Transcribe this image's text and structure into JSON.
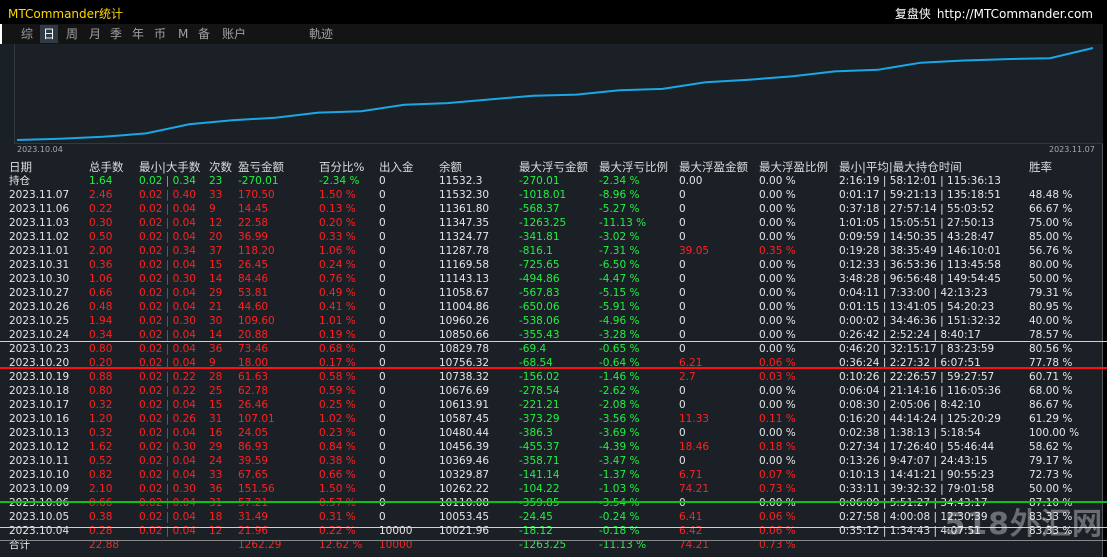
{
  "window": {
    "title": "MTCommander统计",
    "brand_name": "复盘侠",
    "brand_url": "http://MTCommander.com"
  },
  "tabs": [
    {
      "label": "综",
      "active": false
    },
    {
      "label": "日",
      "active": true
    },
    {
      "label": "周",
      "active": false
    },
    {
      "label": "月",
      "active": false
    },
    {
      "label": "季",
      "active": false
    },
    {
      "label": "年",
      "active": false
    },
    {
      "label": "币",
      "active": false
    },
    {
      "label": "M",
      "active": false
    },
    {
      "label": "备",
      "active": false
    },
    {
      "label": "账户",
      "active": false
    },
    {
      "label": "軌迹",
      "active": false
    }
  ],
  "chart_data": {
    "type": "line",
    "x_start_label": "2023.10.04",
    "x_end_label": "2023.11.07",
    "line_color": "#19a8e6",
    "values": [
      10000,
      10021.96,
      10053.45,
      10110.08,
      10262.22,
      10329.87,
      10369.46,
      10456.39,
      10480.44,
      10587.45,
      10613.91,
      10676.69,
      10738.32,
      10756.32,
      10829.78,
      10850.66,
      10960.26,
      11004.86,
      11058.67,
      11143.13,
      11169.58,
      11287.78,
      11324.77,
      11347.35,
      11361.8,
      11532.3
    ]
  },
  "table": {
    "headers": [
      "日期",
      "总手数",
      "最小|大手数",
      "次数",
      "盈亏金额",
      "百分比%",
      "出入金",
      "余额",
      "最大浮亏金额",
      "最大浮亏比例",
      "最大浮盈金额",
      "最大浮盈比例",
      "最小|平均|最大持仓时间",
      "胜率"
    ],
    "rows": [
      {
        "tone": "green",
        "cells": [
          "持仓",
          "1.64",
          "0.02 | 0.34",
          "23",
          "-270.01",
          "-2.34 %",
          "0",
          "11532.3",
          "-270.01",
          "-2.34 %",
          "0.00",
          "0.00 %",
          "2:16:19 | 58:12:01 | 115:36:13",
          ""
        ]
      },
      {
        "tone": "red",
        "cells": [
          "2023.11.07",
          "2.46",
          "0.02 | 0.40",
          "33",
          "170.50",
          "1.50 %",
          "0",
          "11532.30",
          "-1018.01",
          "-8.96 %",
          "0",
          "0.00 %",
          "0:01:17 | 59:21:13 | 135:18:51",
          "48.48 %"
        ]
      },
      {
        "tone": "red",
        "cells": [
          "2023.11.06",
          "0.22",
          "0.02 | 0.04",
          "9",
          "14.45",
          "0.13 %",
          "0",
          "11361.80",
          "-568.37",
          "-5.27 %",
          "0",
          "0.00 %",
          "0:37:18 | 27:57:14 | 55:03:52",
          "66.67 %"
        ]
      },
      {
        "tone": "red",
        "cells": [
          "2023.11.03",
          "0.30",
          "0.02 | 0.04",
          "12",
          "22.58",
          "0.20 %",
          "0",
          "11347.35",
          "-1263.25",
          "-11.13 %",
          "0",
          "0.00 %",
          "1:01:05 | 15:05:51 | 27:50:13",
          "75.00 %"
        ]
      },
      {
        "tone": "red",
        "cells": [
          "2023.11.02",
          "0.50",
          "0.02 | 0.04",
          "20",
          "36.99",
          "0.33 %",
          "0",
          "11324.77",
          "-341.81",
          "-3.02 %",
          "0",
          "0.00 %",
          "0:09:59 | 14:50:35 | 43:28:47",
          "85.00 %"
        ]
      },
      {
        "tone": "red",
        "cells": [
          "2023.11.01",
          "2.00",
          "0.02 | 0.34",
          "37",
          "118.20",
          "1.06 %",
          "0",
          "11287.78",
          "-816.1",
          "-7.31 %",
          "39.05",
          "0.35 %",
          "0:19:28 | 38:35:49 | 146:10:01",
          "56.76 %"
        ]
      },
      {
        "tone": "red",
        "cells": [
          "2023.10.31",
          "0.36",
          "0.02 | 0.04",
          "15",
          "26.45",
          "0.24 %",
          "0",
          "11169.58",
          "-725.65",
          "-6.50 %",
          "0",
          "0.00 %",
          "0:12:33 | 36:53:36 | 113:45:58",
          "80.00 %"
        ]
      },
      {
        "tone": "red",
        "cells": [
          "2023.10.30",
          "1.06",
          "0.02 | 0.30",
          "14",
          "84.46",
          "0.76 %",
          "0",
          "11143.13",
          "-494.86",
          "-4.47 %",
          "0",
          "0.00 %",
          "3:48:28 | 96:56:48 | 149:54:45",
          "50.00 %"
        ]
      },
      {
        "tone": "red",
        "cells": [
          "2023.10.27",
          "0.66",
          "0.02 | 0.04",
          "29",
          "53.81",
          "0.49 %",
          "0",
          "11058.67",
          "-567.83",
          "-5.15 %",
          "0",
          "0.00 %",
          "0:04:11 | 7:33:00 | 42:13:23",
          "79.31 %"
        ]
      },
      {
        "tone": "red",
        "cells": [
          "2023.10.26",
          "0.48",
          "0.02 | 0.04",
          "21",
          "44.60",
          "0.41 %",
          "0",
          "11004.86",
          "-650.06",
          "-5.91 %",
          "0",
          "0.00 %",
          "0:01:15 | 13:41:05 | 54:20:23",
          "80.95 %"
        ]
      },
      {
        "tone": "red",
        "cells": [
          "2023.10.25",
          "1.94",
          "0.02 | 0.30",
          "30",
          "109.60",
          "1.01 %",
          "0",
          "10960.26",
          "-538.06",
          "-4.96 %",
          "0",
          "0.00 %",
          "0:00:02 | 34:46:36 | 151:32:32",
          "40.00 %"
        ]
      },
      {
        "tone": "red",
        "cells": [
          "2023.10.24",
          "0.34",
          "0.02 | 0.04",
          "14",
          "20.88",
          "0.19 %",
          "0",
          "10850.66",
          "-355.43",
          "-3.28 %",
          "0",
          "0.00 %",
          "0:26:42 | 2:52:24 | 8:40:17",
          "78.57 %"
        ]
      },
      {
        "tone": "red",
        "cells": [
          "2023.10.23",
          "0.80",
          "0.02 | 0.04",
          "36",
          "73.46",
          "0.68 %",
          "0",
          "10829.78",
          "-69.4",
          "-0.65 %",
          "0",
          "0.00 %",
          "0:46:20 | 32:15:17 | 83:23:59",
          "80.56 %"
        ]
      },
      {
        "tone": "red",
        "cells": [
          "2023.10.20",
          "0.20",
          "0.02 | 0.04",
          "9",
          "18.00",
          "0.17 %",
          "0",
          "10756.32",
          "-68.54",
          "-0.64 %",
          "6.21",
          "0.06 %",
          "0:36:24 | 2:27:32 | 6:07:51",
          "77.78 %"
        ]
      },
      {
        "tone": "red",
        "cells": [
          "2023.10.19",
          "0.88",
          "0.02 | 0.22",
          "28",
          "61.63",
          "0.58 %",
          "0",
          "10738.32",
          "-156.02",
          "-1.46 %",
          "2.7",
          "0.03 %",
          "0:10:26 | 22:26:57 | 59:27:57",
          "60.71 %"
        ]
      },
      {
        "tone": "red",
        "cells": [
          "2023.10.18",
          "0.80",
          "0.02 | 0.22",
          "25",
          "62.78",
          "0.59 %",
          "0",
          "10676.69",
          "-278.54",
          "-2.62 %",
          "0",
          "0.00 %",
          "0:06:04 | 21:14:16 | 116:05:36",
          "68.00 %"
        ]
      },
      {
        "tone": "red",
        "cells": [
          "2023.10.17",
          "0.32",
          "0.02 | 0.04",
          "15",
          "26.46",
          "0.25 %",
          "0",
          "10613.91",
          "-221.21",
          "-2.08 %",
          "0",
          "0.00 %",
          "0:08:30 | 2:05:06 | 8:42:10",
          "86.67 %"
        ]
      },
      {
        "tone": "red",
        "cells": [
          "2023.10.16",
          "1.20",
          "0.02 | 0.26",
          "31",
          "107.01",
          "1.02 %",
          "0",
          "10587.45",
          "-373.29",
          "-3.56 %",
          "11.33",
          "0.11 %",
          "0:16:20 | 44:14:24 | 125:20:29",
          "61.29 %"
        ]
      },
      {
        "tone": "red",
        "cells": [
          "2023.10.13",
          "0.32",
          "0.02 | 0.04",
          "16",
          "24.05",
          "0.23 %",
          "0",
          "10480.44",
          "-386.3",
          "-3.69 %",
          "0",
          "0.00 %",
          "0:02:38 | 1:38:13 | 5:18:54",
          "100.00 %"
        ]
      },
      {
        "tone": "red",
        "cells": [
          "2023.10.12",
          "1.62",
          "0.02 | 0.30",
          "29",
          "86.93",
          "0.84 %",
          "0",
          "10456.39",
          "-455.37",
          "-4.39 %",
          "18.46",
          "0.18 %",
          "0:27:34 | 17:26:40 | 55:46:44",
          "58.62 %"
        ]
      },
      {
        "tone": "red",
        "cells": [
          "2023.10.11",
          "0.52",
          "0.02 | 0.04",
          "24",
          "39.59",
          "0.38 %",
          "0",
          "10369.46",
          "-358.71",
          "-3.47 %",
          "0",
          "0.00 %",
          "0:13:26 | 9:47:07 | 24:43:15",
          "79.17 %"
        ]
      },
      {
        "tone": "red",
        "cells": [
          "2023.10.10",
          "0.82",
          "0.02 | 0.04",
          "33",
          "67.65",
          "0.66 %",
          "0",
          "10329.87",
          "-141.14",
          "-1.37 %",
          "6.71",
          "0.07 %",
          "0:10:13 | 14:41:21 | 90:55:23",
          "72.73 %"
        ]
      },
      {
        "tone": "red",
        "cells": [
          "2023.10.09",
          "2.10",
          "0.02 | 0.30",
          "36",
          "151.56",
          "1.50 %",
          "0",
          "10262.22",
          "-104.22",
          "-1.03 %",
          "74.21",
          "0.73 %",
          "0:33:11 | 39:32:32 | 79:01:58",
          "50.00 %"
        ]
      },
      {
        "tone": "red",
        "cells": [
          "2023.10.06",
          "0.66",
          "0.02 | 0.04",
          "31",
          "57.21",
          "0.57 %",
          "0",
          "10110.08",
          "-359.85",
          "-3.54 %",
          "0",
          "0.00 %",
          "0:06:09 | 5:51:27 | 34:43:17",
          "87.10 %"
        ]
      },
      {
        "tone": "red",
        "cells": [
          "2023.10.05",
          "0.38",
          "0.02 | 0.04",
          "18",
          "31.49",
          "0.31 %",
          "0",
          "10053.45",
          "-24.45",
          "-0.24 %",
          "6.41",
          "0.06 %",
          "0:27:58 | 4:00:08 | 12:30:39",
          "83.33 %"
        ]
      },
      {
        "tone": "red",
        "cells": [
          "2023.10.04",
          "0.28",
          "0.02 | 0.04",
          "12",
          "21.96",
          "0.22 %",
          "10000",
          "10021.96",
          "-18.12",
          "-0.18 %",
          "6.42",
          "0.06 %",
          "0:35:12 | 1:34:43 | 4:07:51",
          "83.33 %"
        ]
      },
      {
        "tone": "total",
        "cells": [
          "合计",
          "22.88",
          "",
          "",
          "1262.29",
          "12.62 %",
          "10000",
          "",
          "-1263.25",
          "-11.13 %",
          "74.21",
          "0.73 %",
          "",
          ""
        ]
      }
    ]
  },
  "watermark": "518外汇网"
}
